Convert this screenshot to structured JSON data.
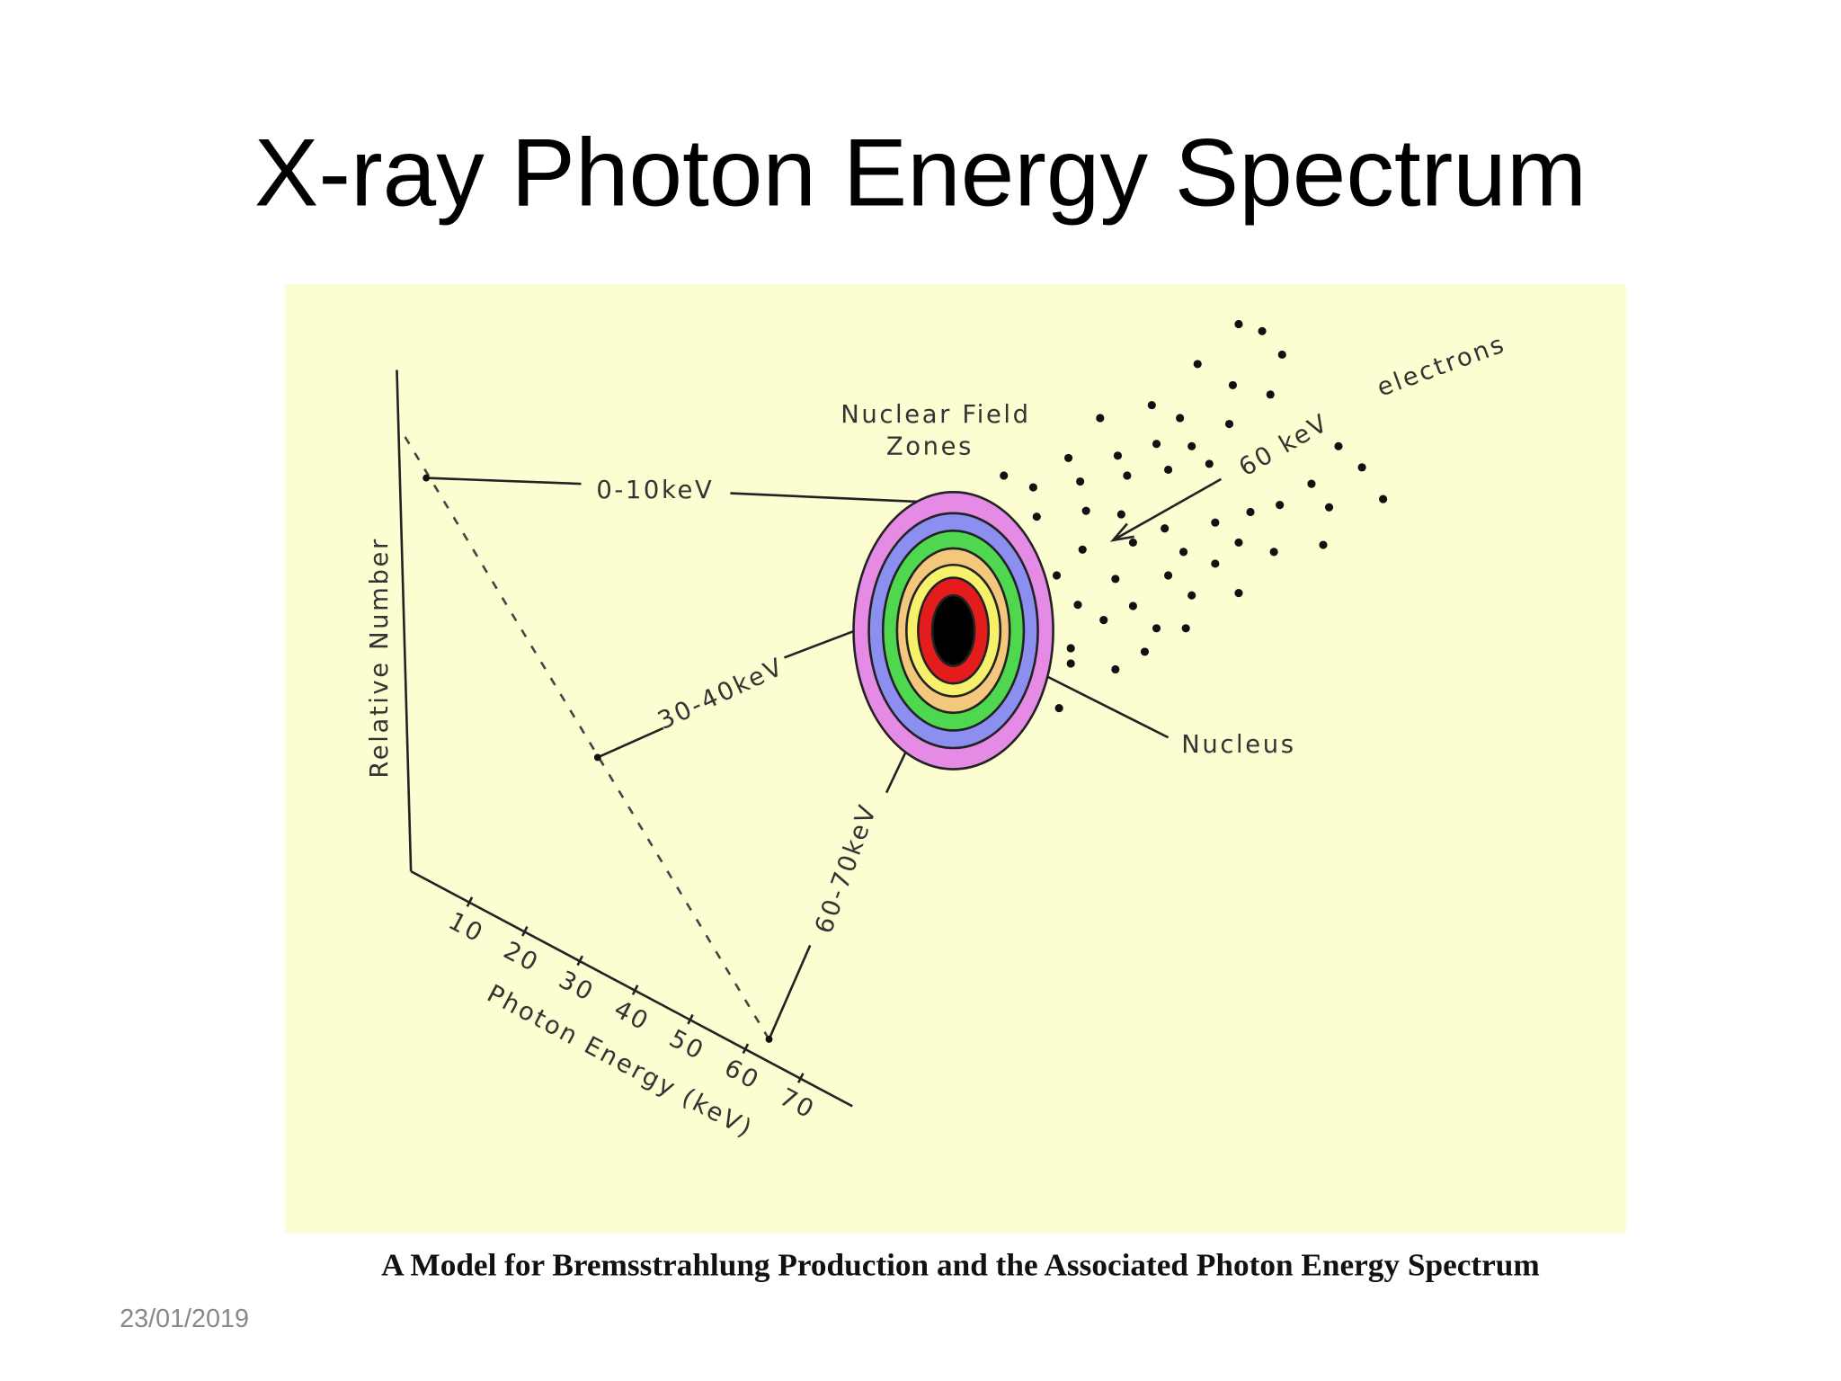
{
  "slide": {
    "title": "X-ray Photon Energy Spectrum",
    "figure": {
      "y_axis_label": "Relative Number",
      "x_axis_label": "Photon Energy (keV)",
      "x_ticks": [
        "10",
        "20",
        "30",
        "40",
        "50",
        "60",
        "70"
      ],
      "zones_label": [
        "Nuclear Field",
        "Zones"
      ],
      "band_labels": [
        "0-10keV",
        "30-40keV",
        "60-70keV"
      ],
      "nucleus_label": "Nucleus",
      "beam_energy_label": "60 keV",
      "electrons_label": "electrons"
    },
    "caption": "A Model for Bremsstrahlung Production and the Associated Photon Energy Spectrum",
    "date": "23/01/2019"
  }
}
